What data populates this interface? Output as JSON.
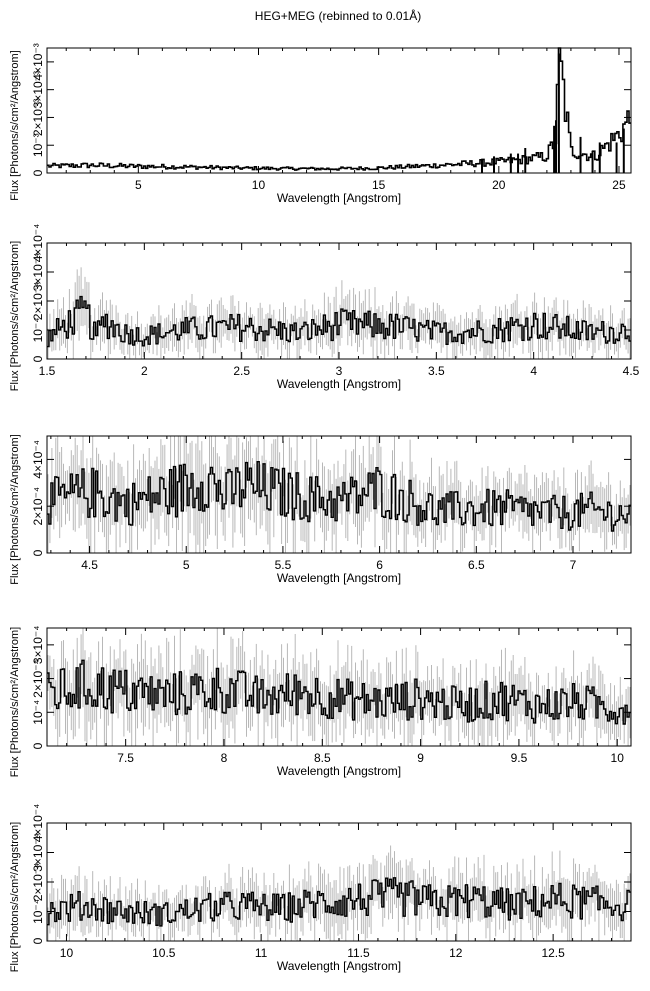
{
  "title": "HEG+MEG (rebinned to 0.01Å)",
  "colors": {
    "axis": "#000000",
    "spectrum": "#000000",
    "errorbar": "#b8b8b8"
  },
  "chart_data": [
    {
      "type": "line",
      "xlabel": "Wavelength [Angstrom]",
      "ylabel": "Flux [Photons/s/cm²/Angstrom]",
      "xlim": [
        1.2,
        25.5
      ],
      "ylim": [
        0,
        0.0045
      ],
      "xticks": [
        5,
        10,
        15,
        20,
        25
      ],
      "yticks": [
        {
          "value": 0.0,
          "label": "0"
        },
        {
          "value": 0.001,
          "label": "10⁻³"
        },
        {
          "value": 0.002,
          "label": "2×10⁻³"
        },
        {
          "value": 0.003,
          "label": "3×10⁻³"
        },
        {
          "value": 0.004,
          "label": "4×10⁻³"
        }
      ],
      "x": [
        1.5,
        3,
        5,
        7,
        9,
        11,
        13,
        15,
        16,
        17,
        18,
        19,
        20,
        21,
        22,
        22.3,
        22.4,
        22.5,
        23,
        24,
        25,
        25.4
      ],
      "y": [
        0.00025,
        0.00028,
        0.00024,
        0.00022,
        0.00018,
        0.00016,
        0.00015,
        0.00018,
        0.00022,
        0.00026,
        0.0003,
        0.00035,
        0.0004,
        0.00048,
        0.0006,
        0.0011,
        0.0013,
        0.0043,
        0.0008,
        0.0006,
        0.0014,
        0.0019
      ],
      "spikes": [
        {
          "x": 22.3,
          "y": 0.0017
        },
        {
          "x": 22.38,
          "y": 0.0019
        },
        {
          "x": 22.5,
          "y": 0.0043
        },
        {
          "x": 21.1,
          "y": 0.0009
        },
        {
          "x": 20.8,
          "y": 0.0007
        },
        {
          "x": 20.5,
          "y": 0.0007
        },
        {
          "x": 23.4,
          "y": 0.0013
        },
        {
          "x": 24.2,
          "y": 0.0011
        },
        {
          "x": 23.9,
          "y": 0.0008
        },
        {
          "x": 24.9,
          "y": 0.0011
        },
        {
          "x": 25.2,
          "y": 0.0016
        },
        {
          "x": 19.8,
          "y": 0.0006
        },
        {
          "x": 19.3,
          "y": 0.0005
        }
      ]
    },
    {
      "type": "line",
      "xlabel": "Wavelength [Angstrom]",
      "ylabel": "Flux [Photons/s/cm²/Angstrom]",
      "xlim": [
        1.5,
        4.5
      ],
      "ylim": [
        0,
        0.0004
      ],
      "xticks": [
        1.5,
        2,
        2.5,
        3,
        3.5,
        4,
        4.5
      ],
      "yticks": [
        {
          "value": 0.0,
          "label": "0"
        },
        {
          "value": 0.0001,
          "label": "10⁻⁴"
        },
        {
          "value": 0.0002,
          "label": "2×10⁻⁴"
        },
        {
          "value": 0.0003,
          "label": "3×10⁻⁴"
        },
        {
          "value": 0.0004,
          "label": "4×10⁻⁴"
        }
      ],
      "x": [
        1.5,
        1.6,
        1.7,
        1.75,
        1.8,
        1.9,
        2.0,
        2.2,
        2.5,
        2.8,
        3.0,
        3.3,
        3.5,
        3.8,
        4.0,
        4.3,
        4.5
      ],
      "y": [
        7e-05,
        0.00012,
        0.00016,
        8e-05,
        0.00013,
        9e-05,
        8e-05,
        0.0001,
        0.00011,
        9e-05,
        0.00012,
        0.00011,
        9e-05,
        0.0001,
        0.00012,
        9e-05,
        0.0001
      ]
    },
    {
      "type": "line",
      "xlabel": "Wavelength [Angstrom]",
      "ylabel": "Flux [Photons/s/cm²/Angstrom]",
      "xlim": [
        4.28,
        7.3
      ],
      "ylim": [
        0,
        0.0005
      ],
      "xticks": [
        4.5,
        5,
        5.5,
        6,
        6.5,
        7
      ],
      "yticks": [
        {
          "value": 0.0,
          "label": "0"
        },
        {
          "value": 0.0002,
          "label": "2×10⁻⁴"
        },
        {
          "value": 0.0004,
          "label": "4×10⁻⁴"
        }
      ],
      "x": [
        4.3,
        4.5,
        4.7,
        5.0,
        5.1,
        5.2,
        5.3,
        5.4,
        5.6,
        5.8,
        6.0,
        6.3,
        6.6,
        6.9,
        7.1,
        7.3
      ],
      "y": [
        0.00022,
        0.00026,
        0.00021,
        0.00028,
        0.00033,
        0.00024,
        0.00029,
        0.00027,
        0.00024,
        0.00022,
        0.00027,
        0.00018,
        0.00019,
        0.00017,
        0.00018,
        0.00016
      ]
    },
    {
      "type": "line",
      "xlabel": "Wavelength [Angstrom]",
      "ylabel": "Flux [Photons/s/cm²/Angstrom]",
      "xlim": [
        7.1,
        10.07
      ],
      "ylim": [
        0,
        0.00035
      ],
      "xticks": [
        7.5,
        8,
        8.5,
        9,
        9.5,
        10
      ],
      "yticks": [
        {
          "value": 0.0,
          "label": "0"
        },
        {
          "value": 0.0001,
          "label": "10⁻⁴"
        },
        {
          "value": 0.0002,
          "label": "2×10⁻⁴"
        },
        {
          "value": 0.0003,
          "label": "3×10⁻⁴"
        }
      ],
      "x": [
        7.1,
        7.3,
        7.5,
        7.7,
        8.0,
        8.2,
        8.4,
        8.6,
        8.8,
        9.0,
        9.2,
        9.4,
        9.6,
        9.8,
        10.0
      ],
      "y": [
        0.00015,
        0.00018,
        0.00016,
        0.00015,
        0.00017,
        0.00014,
        0.00016,
        0.00014,
        0.00013,
        0.00014,
        0.00012,
        0.00014,
        0.00012,
        0.00013,
        0.00011
      ]
    },
    {
      "type": "line",
      "xlabel": "Wavelength [Angstrom]",
      "ylabel": "Flux [Photons/s/cm²/Angstrom]",
      "xlim": [
        9.9,
        12.9
      ],
      "ylim": [
        0,
        0.0004
      ],
      "xticks": [
        10,
        10.5,
        11,
        11.5,
        12,
        12.5
      ],
      "yticks": [
        {
          "value": 0.0,
          "label": "0"
        },
        {
          "value": 0.0001,
          "label": "10⁻⁴"
        },
        {
          "value": 0.0002,
          "label": "2×10⁻⁴"
        },
        {
          "value": 0.0003,
          "label": "3×10⁻⁴"
        },
        {
          "value": 0.0004,
          "label": "4×10⁻⁴"
        }
      ],
      "x": [
        9.9,
        10.1,
        10.3,
        10.5,
        10.7,
        10.9,
        11.1,
        11.3,
        11.5,
        11.7,
        11.9,
        12.1,
        12.3,
        12.5,
        12.7,
        12.9
      ],
      "y": [
        0.0001,
        0.00012,
        0.0001,
        9e-05,
        0.00011,
        0.00012,
        0.00011,
        0.00013,
        0.00014,
        0.00015,
        0.00013,
        0.00014,
        0.00012,
        0.00014,
        0.00013,
        0.00012
      ]
    }
  ]
}
